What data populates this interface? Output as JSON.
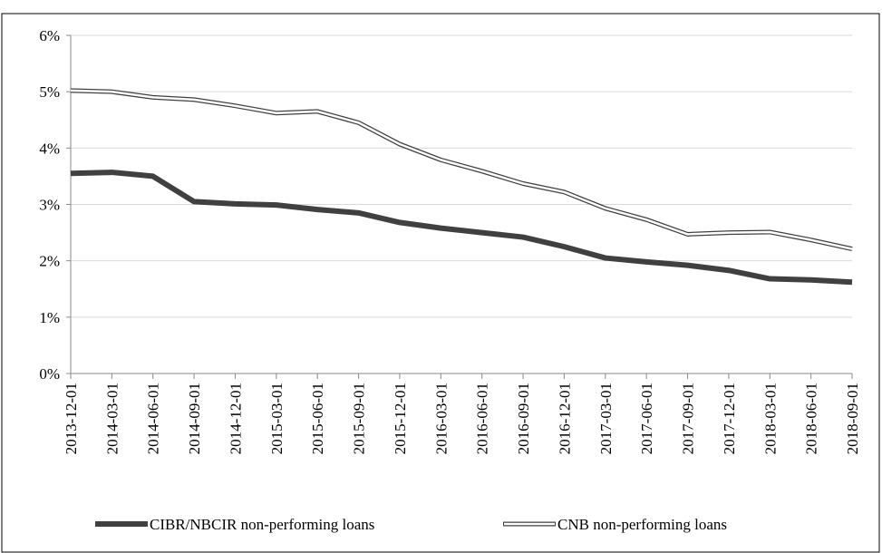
{
  "chart_data": {
    "type": "line",
    "categories": [
      "2013-12-01",
      "2014-03-01",
      "2014-06-01",
      "2014-09-01",
      "2014-12-01",
      "2015-03-01",
      "2015-06-01",
      "2015-09-01",
      "2015-12-01",
      "2016-03-01",
      "2016-06-01",
      "2016-09-01",
      "2016-12-01",
      "2017-03-01",
      "2017-06-01",
      "2017-09-01",
      "2017-12-01",
      "2018-03-01",
      "2018-06-01",
      "2018-09-01"
    ],
    "series": [
      {
        "name": "CIBR/NBCIR non-performing loans",
        "color": "#404040",
        "style": "solid",
        "values": [
          3.55,
          3.57,
          3.5,
          3.05,
          3.01,
          2.99,
          2.91,
          2.85,
          2.68,
          2.58,
          2.5,
          2.42,
          2.25,
          2.05,
          1.98,
          1.92,
          1.83,
          1.68,
          1.66,
          1.62
        ]
      },
      {
        "name": "CNB non-performing loans",
        "color": "#404040",
        "style": "double",
        "values": [
          5.02,
          5.0,
          4.9,
          4.86,
          4.75,
          4.62,
          4.65,
          4.45,
          4.07,
          3.79,
          3.59,
          3.37,
          3.22,
          2.93,
          2.73,
          2.47,
          2.5,
          2.51,
          2.37,
          2.21
        ]
      }
    ],
    "ylim": [
      0,
      6
    ],
    "yticks": [
      {
        "value": 0,
        "label": "0%"
      },
      {
        "value": 1,
        "label": "1%"
      },
      {
        "value": 2,
        "label": "2%"
      },
      {
        "value": 3,
        "label": "3%"
      },
      {
        "value": 4,
        "label": "4%"
      },
      {
        "value": 5,
        "label": "5%"
      },
      {
        "value": 6,
        "label": "6%"
      }
    ],
    "grid": true,
    "legend": "bottom"
  }
}
